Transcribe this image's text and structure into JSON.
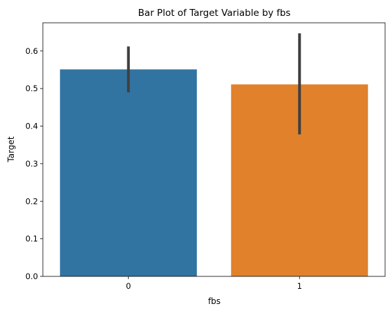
{
  "chart_data": {
    "type": "bar",
    "title": "Bar Plot of Target Variable by fbs",
    "xlabel": "fbs",
    "ylabel": "Target",
    "categories": [
      "0",
      "1"
    ],
    "values": [
      0.551,
      0.511
    ],
    "error_low": [
      0.49,
      0.378
    ],
    "error_high": [
      0.612,
      0.647
    ],
    "colors": [
      "#3274a1",
      "#e1812c"
    ],
    "error_color": "#3f3f3f",
    "ylim": [
      0,
      0.675
    ],
    "yticks": [
      0.0,
      0.1,
      0.2,
      0.3,
      0.4,
      0.5,
      0.6
    ],
    "ytick_labels": [
      "0.0",
      "0.1",
      "0.2",
      "0.3",
      "0.4",
      "0.5",
      "0.6"
    ],
    "grid": false,
    "legend": "none"
  }
}
